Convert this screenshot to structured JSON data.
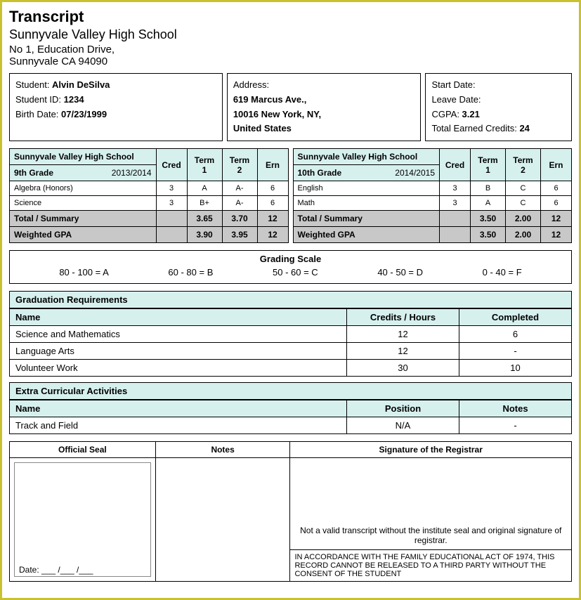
{
  "header": {
    "title": "Transcript",
    "school": "Sunnyvale Valley High School",
    "addr1": "No 1, Education Drive,",
    "addr2": "Sunnyvale CA 94090"
  },
  "student": {
    "name_label": "Student: ",
    "name": "Alvin DeSilva",
    "id_label": "Student ID: ",
    "id": "1234",
    "birth_label": "Birth Date: ",
    "birth": "07/23/1999"
  },
  "address": {
    "label": "Address:",
    "line1": "619 Marcus Ave.,",
    "line2": "10016 New York, NY,",
    "line3": "United States"
  },
  "dates": {
    "start_label": "Start Date:",
    "leave_label": "Leave Date:",
    "cgpa_label": "CGPA: ",
    "cgpa": "3.21",
    "cred_label": "Total Earned Credits: ",
    "cred": "24"
  },
  "gradeHeaders": {
    "cred": "Cred",
    "t1": "Term 1",
    "t2": "Term 2",
    "ern": "Ern"
  },
  "g9": {
    "school": "Sunnyvale Valley High School",
    "grade": "9th Grade",
    "year": "2013/2014",
    "courses": [
      {
        "name": "Algebra (Honors)",
        "cred": "3",
        "t1": "A",
        "t2": "A-",
        "ern": "6"
      },
      {
        "name": "Science",
        "cred": "3",
        "t1": "B+",
        "t2": "A-",
        "ern": "6"
      }
    ],
    "total_label": "Total / Summary",
    "total": {
      "t1": "3.65",
      "t2": "3.70",
      "ern": "12"
    },
    "wgpa_label": "Weighted GPA",
    "wgpa": {
      "t1": "3.90",
      "t2": "3.95",
      "ern": "12"
    }
  },
  "g10": {
    "school": "Sunnyvale Valley High School",
    "grade": "10th Grade",
    "year": "2014/2015",
    "courses": [
      {
        "name": "English",
        "cred": "3",
        "t1": "B",
        "t2": "C",
        "ern": "6"
      },
      {
        "name": "Math",
        "cred": "3",
        "t1": "A",
        "t2": "C",
        "ern": "6"
      }
    ],
    "total_label": "Total / Summary",
    "total": {
      "t1": "3.50",
      "t2": "2.00",
      "ern": "12"
    },
    "wgpa_label": "Weighted GPA",
    "wgpa": {
      "t1": "3.50",
      "t2": "2.00",
      "ern": "12"
    }
  },
  "scale": {
    "title": "Grading Scale",
    "items": [
      "80 - 100 = A",
      "60 - 80 = B",
      "50 - 60 = C",
      "40 - 50 = D",
      "0 - 40 = F"
    ]
  },
  "req": {
    "title": "Graduation Requirements",
    "cols": {
      "name": "Name",
      "ch": "Credits / Hours",
      "cp": "Completed"
    },
    "rows": [
      {
        "name": "Science and Mathematics",
        "ch": "12",
        "cp": "6"
      },
      {
        "name": "Language Arts",
        "ch": "12",
        "cp": "-"
      },
      {
        "name": "Volunteer Work",
        "ch": "30",
        "cp": "10"
      }
    ]
  },
  "eca": {
    "title": "Extra Curricular Activities",
    "cols": {
      "name": "Name",
      "pos": "Position",
      "notes": "Notes"
    },
    "rows": [
      {
        "name": "Track and Field",
        "pos": "N/A",
        "notes": "-"
      }
    ]
  },
  "footer": {
    "seal_head": "Official Seal",
    "notes_head": "Notes",
    "sig_head": "Signature of the Registrar",
    "date_label": "Date: ___ /___ /___",
    "sig_note": "Not a valid transcript without the institute seal and original signature of registrar.",
    "legal": "IN ACCORDANCE WITH THE FAMILY EDUCATIONAL ACT OF 1974, THIS RECORD CANNOT BE RELEASED TO A THIRD PARTY WITHOUT THE CONSENT OF THE STUDENT"
  }
}
